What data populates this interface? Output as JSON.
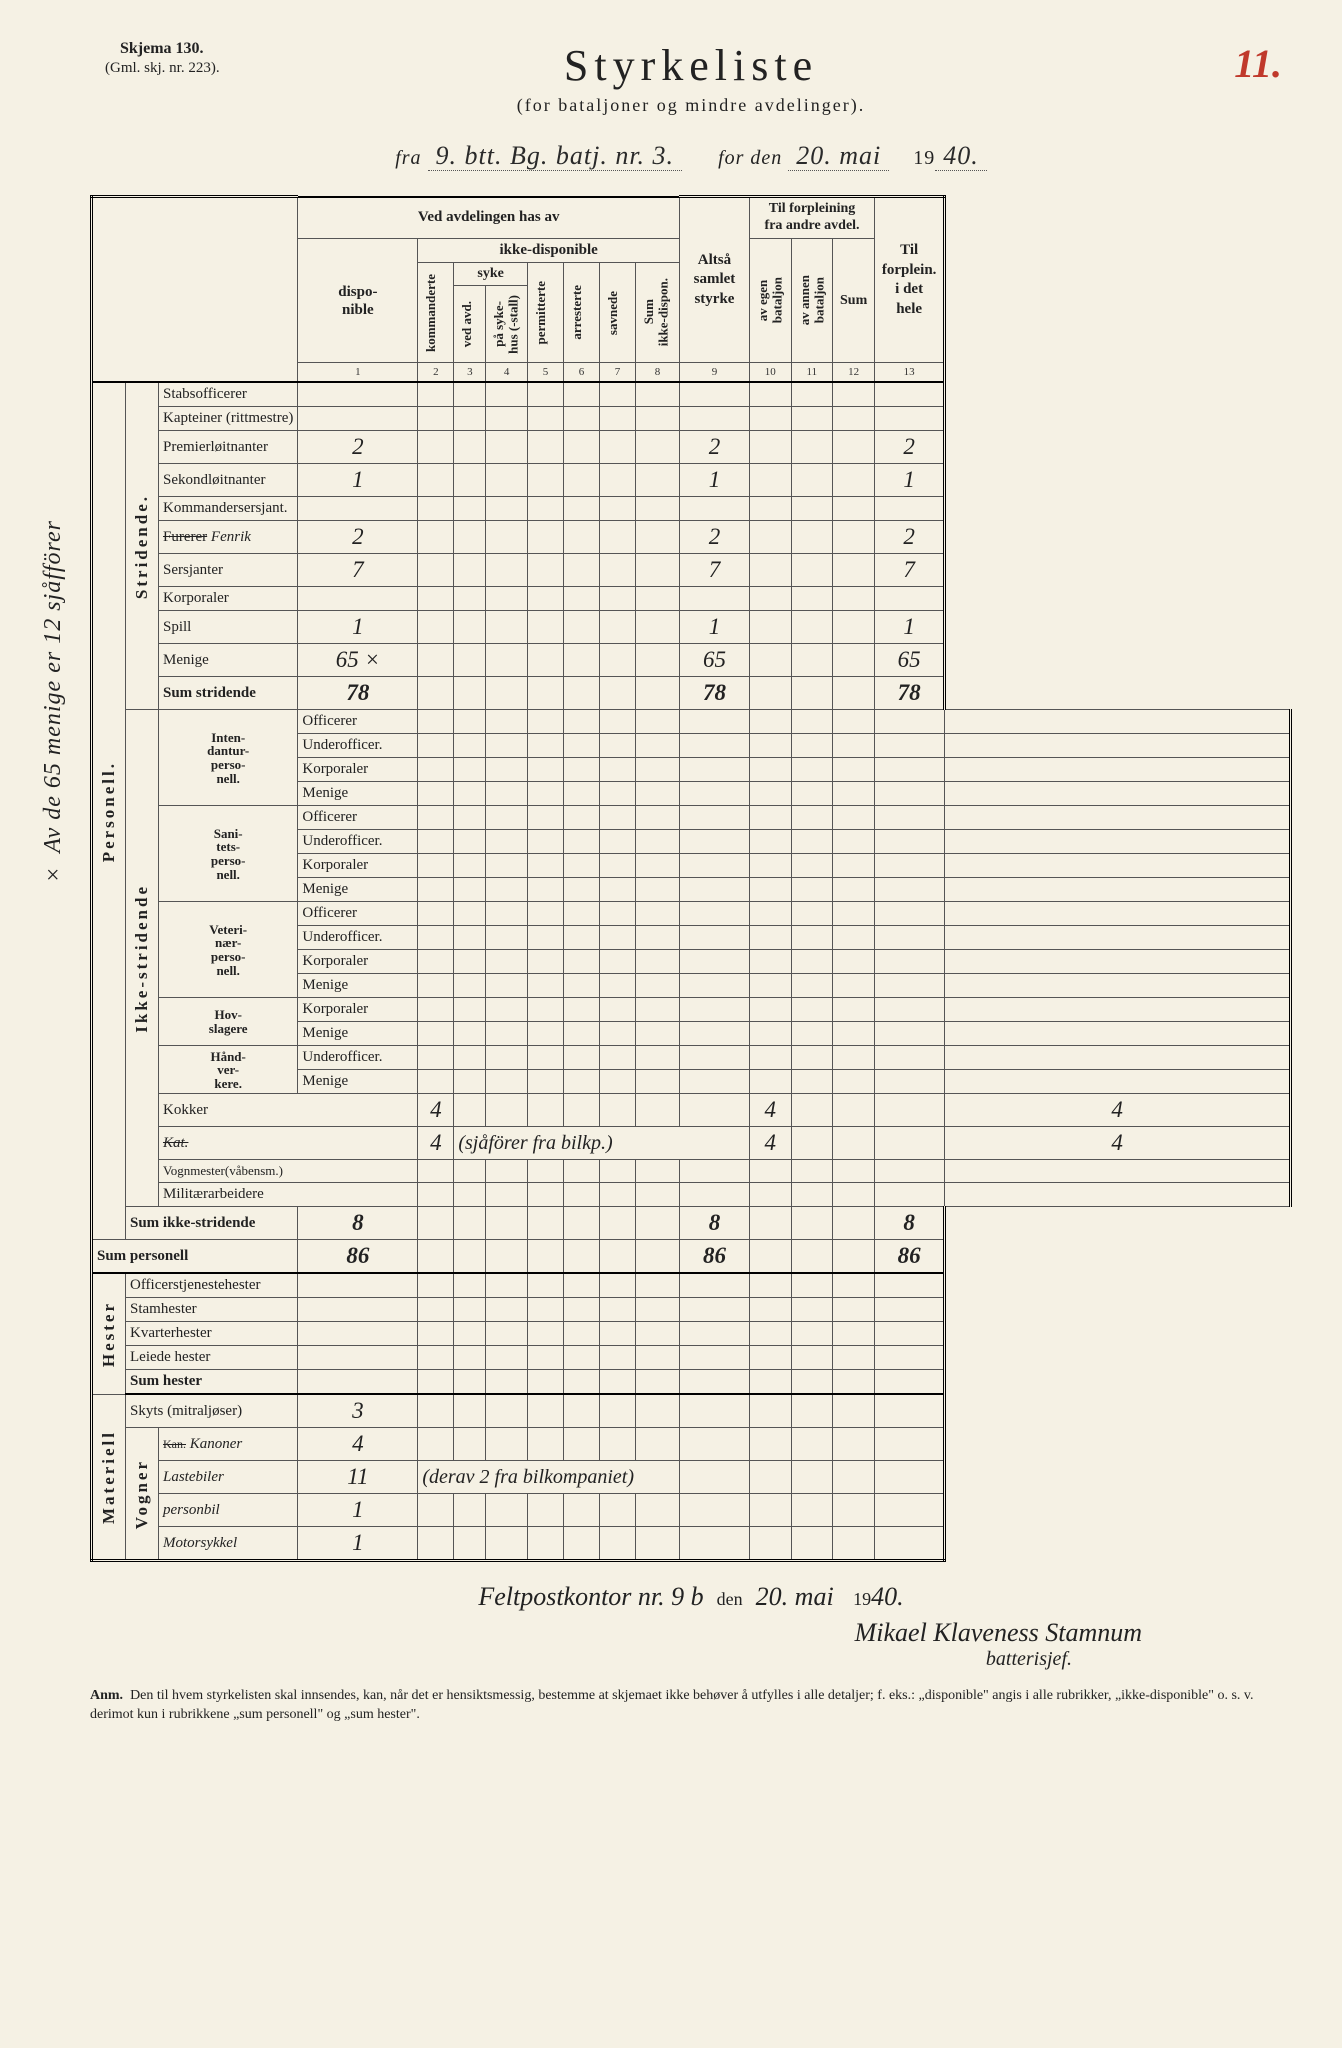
{
  "form": {
    "number": "Skjema 130.",
    "old_number": "(Gml. skj. nr. 223).",
    "page_num": "11.",
    "title": "Styrkeliste",
    "subtitle": "(for bataljoner og mindre avdelinger).",
    "fra_label": "fra",
    "fra_value": "9. btt. Bg. batj. nr. 3.",
    "for_den_label": "for den",
    "date_value": "20. mai",
    "year_prefix": "19",
    "year_value": "40."
  },
  "margin_note": "× Av de 65 menige er 12 sjåfförer",
  "headers": {
    "ved_avdelingen": "Ved avdelingen has av",
    "ikke_disponible": "ikke-disponible",
    "syke": "syke",
    "disponible": "dispo-\nnible",
    "kommanderte": "kommanderte",
    "ved_avd": "ved avd.",
    "pa_sykehus": "på syke-\nhus (-stall)",
    "permitterte": "permitterte",
    "arresterte": "arresterte",
    "savnede": "savnede",
    "sum_ikke": "Sum\nikke-dispon.",
    "altsa": "Altså\nsamlet\nstyrke",
    "til_forpleining": "Til forpleining\nfra andre avdel.",
    "av_egen": "av egen\nbataljon",
    "av_annen": "av annen\nbataljon",
    "sum": "Sum",
    "til_forplein": "Til\nforplein.\ni det\nhele"
  },
  "colnums": [
    "1",
    "2",
    "3",
    "4",
    "5",
    "6",
    "7",
    "8",
    "9",
    "10",
    "11",
    "12",
    "13"
  ],
  "section_labels": {
    "personell": "Personell.",
    "stridende": "Stridende.",
    "ikke_stridende": "Ikke-stridende",
    "hester": "Hester",
    "materiell": "Materiell",
    "vogner": "Vogner"
  },
  "group_labels": {
    "inten": "Inten-\ndantur-\nperso-\nnell.",
    "sani": "Sani-\ntets-\nperso-\nnell.",
    "veteri": "Veteri-\nnær-\nperso-\nnell.",
    "hov": "Hov-\nslagere",
    "hand": "Hånd-\nver-\nkere."
  },
  "rows": {
    "stabsofficerer": {
      "label": "Stabsofficerer"
    },
    "kapteiner": {
      "label": "Kapteiner (rittmestre)"
    },
    "premierloit": {
      "label": "Premierløitnanter",
      "c1": "2",
      "c9": "2",
      "c13": "2"
    },
    "sekondloit": {
      "label": "Sekondløitnanter",
      "c1": "1",
      "c9": "1",
      "c13": "1"
    },
    "kommandersj": {
      "label": "Kommandersersjant."
    },
    "furerer": {
      "label_strike": "Furerer",
      "label_hand": "Fenrik",
      "c1": "2",
      "c9": "2",
      "c13": "2"
    },
    "sersjanter": {
      "label": "Sersjanter",
      "c1": "7",
      "c9": "7",
      "c13": "7"
    },
    "korporaler": {
      "label": "Korporaler"
    },
    "spill": {
      "label": "Spill",
      "c1": "1",
      "c9": "1",
      "c13": "1"
    },
    "menige": {
      "label": "Menige",
      "c1": "65 ×",
      "c9": "65",
      "c13": "65"
    },
    "sum_stridende": {
      "label": "Sum stridende",
      "c1": "78",
      "c9": "78",
      "c13": "78"
    },
    "officerer": "Officerer",
    "underofficer": "Underofficer.",
    "korporaler2": "Korporaler",
    "menige2": "Menige",
    "kokker": {
      "label": "Kokker",
      "c1": "4",
      "c9": "4",
      "c13": "4"
    },
    "kat": {
      "label_hand": "",
      "c1": "4",
      "note": "(sjåförer fra bilkp.)",
      "c9": "4",
      "c13": "4"
    },
    "vognmester": {
      "label": "Vognmester(våbensm.)"
    },
    "militaerarbeidere": {
      "label": "Militærarbeidere"
    },
    "sum_ikke_str": {
      "label": "Sum ikke-stridende",
      "c1": "8",
      "c9": "8",
      "c13": "8"
    },
    "sum_personell": {
      "label": "Sum personell",
      "c1": "86",
      "c9": "86",
      "c13": "86"
    },
    "officerstjeneste": {
      "label": "Officerstjenestehester"
    },
    "stamhester": {
      "label": "Stamhester"
    },
    "kvarterhester": {
      "label": "Kvarterhester"
    },
    "leiede": {
      "label": "Leiede hester"
    },
    "sum_hester": {
      "label": "Sum hester"
    },
    "skyts": {
      "label": "Skyts (mitraljøser)",
      "c1": "3"
    },
    "kanoner": {
      "label_hand": "Kanoner",
      "c1": "4"
    },
    "lastebiler": {
      "label_hand": "Lastebiler",
      "c1": "11",
      "note": "(derav 2 fra bilkompaniet)"
    },
    "personbil": {
      "label_hand": "personbil",
      "c1": "1"
    },
    "motorsykkel": {
      "label_hand": "Motorsykkel",
      "c1": "1"
    }
  },
  "bottom": {
    "line1_a": "Feltpostkontor nr. 9 b",
    "line1_b": "den",
    "line1_c": "20. mai",
    "line1_d": "19",
    "line1_e": "40.",
    "sig": "Mikael Klaveness Stamnum",
    "sig2": "batterisjef."
  },
  "anm": {
    "label": "Anm.",
    "text": "Den til hvem styrkelisten skal innsendes, kan, når det er hensiktsmessig, bestemme at skjemaet ikke behøver å utfylles i alle detaljer; f. eks.: „disponible\" angis i alle rubrikker, „ikke-disponible\" o. s. v. derimot kun i rubrikkene „sum personell\" og „sum hester\"."
  },
  "colors": {
    "paper": "#f5f1e4",
    "ink": "#222222",
    "red": "#c0392b",
    "border": "#555555"
  }
}
